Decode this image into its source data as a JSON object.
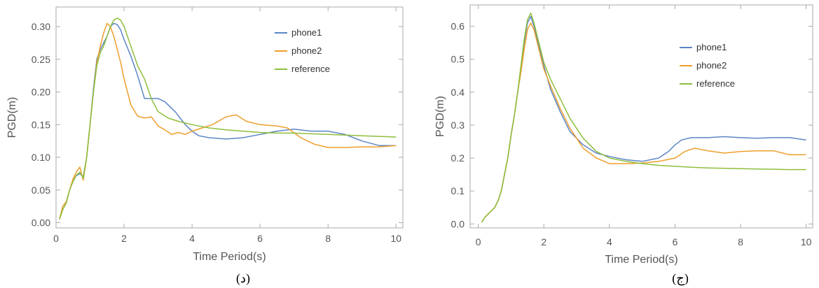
{
  "colors": {
    "phone1": "#5b85c6",
    "phone2": "#ee9e2b",
    "reference": "#8ebe3c",
    "frame": "#aaaaaa"
  },
  "chart_data": [
    {
      "type": "line",
      "caption": "(د)",
      "xlabel": "Time Period(s)",
      "ylabel": "PGD(m)",
      "xlim": [
        0,
        10.2
      ],
      "ylim": [
        -0.008,
        0.33
      ],
      "xticks": [
        0,
        2,
        4,
        6,
        8,
        10
      ],
      "yticks": [
        0.0,
        0.05,
        0.1,
        0.15,
        0.2,
        0.25,
        0.3
      ],
      "ytick_labels": [
        "0.00",
        "0.05",
        "0.10",
        "0.15",
        "0.20",
        "0.25",
        "0.30"
      ],
      "legend": "top-right",
      "series": [
        {
          "name": "phone1",
          "color_key": "phone1",
          "x": [
            0.1,
            0.2,
            0.3,
            0.4,
            0.5,
            0.6,
            0.7,
            0.8,
            0.9,
            1.0,
            1.1,
            1.2,
            1.3,
            1.4,
            1.5,
            1.6,
            1.7,
            1.8,
            1.9,
            2.0,
            2.2,
            2.4,
            2.6,
            2.8,
            3.0,
            3.2,
            3.5,
            3.8,
            4.0,
            4.2,
            4.5,
            5.0,
            5.5,
            6.0,
            6.5,
            7.0,
            7.5,
            8.0,
            8.5,
            9.0,
            9.5,
            10.0
          ],
          "y": [
            0.005,
            0.025,
            0.032,
            0.05,
            0.065,
            0.072,
            0.075,
            0.07,
            0.1,
            0.15,
            0.205,
            0.25,
            0.265,
            0.275,
            0.285,
            0.3,
            0.305,
            0.303,
            0.295,
            0.28,
            0.255,
            0.225,
            0.19,
            0.19,
            0.19,
            0.185,
            0.17,
            0.15,
            0.14,
            0.133,
            0.13,
            0.128,
            0.13,
            0.135,
            0.14,
            0.143,
            0.14,
            0.14,
            0.135,
            0.125,
            0.118,
            0.118
          ]
        },
        {
          "name": "phone2",
          "color_key": "phone2",
          "x": [
            0.1,
            0.2,
            0.3,
            0.4,
            0.5,
            0.6,
            0.7,
            0.8,
            0.9,
            1.0,
            1.1,
            1.2,
            1.3,
            1.4,
            1.5,
            1.6,
            1.7,
            1.8,
            1.9,
            2.0,
            2.2,
            2.4,
            2.6,
            2.8,
            3.0,
            3.2,
            3.4,
            3.6,
            3.8,
            4.0,
            4.3,
            4.6,
            5.0,
            5.3,
            5.6,
            6.0,
            6.5,
            6.8,
            7.2,
            7.6,
            8.0,
            8.5,
            9.0,
            9.5,
            10.0
          ],
          "y": [
            0.005,
            0.025,
            0.032,
            0.05,
            0.067,
            0.078,
            0.085,
            0.065,
            0.1,
            0.15,
            0.2,
            0.245,
            0.27,
            0.29,
            0.305,
            0.3,
            0.285,
            0.265,
            0.245,
            0.22,
            0.18,
            0.163,
            0.16,
            0.162,
            0.148,
            0.142,
            0.135,
            0.138,
            0.135,
            0.14,
            0.145,
            0.15,
            0.162,
            0.165,
            0.155,
            0.15,
            0.148,
            0.145,
            0.13,
            0.12,
            0.115,
            0.115,
            0.116,
            0.116,
            0.118
          ]
        },
        {
          "name": "reference",
          "color_key": "reference",
          "x": [
            0.1,
            0.2,
            0.3,
            0.4,
            0.5,
            0.6,
            0.7,
            0.8,
            0.9,
            1.0,
            1.1,
            1.2,
            1.3,
            1.4,
            1.5,
            1.6,
            1.7,
            1.8,
            1.9,
            2.0,
            2.2,
            2.4,
            2.6,
            2.8,
            3.0,
            3.3,
            3.6,
            4.0,
            4.5,
            5.0,
            5.5,
            6.0,
            6.5,
            7.0,
            7.5,
            8.0,
            8.5,
            9.0,
            9.5,
            10.0
          ],
          "y": [
            0.005,
            0.02,
            0.03,
            0.05,
            0.063,
            0.073,
            0.077,
            0.068,
            0.1,
            0.15,
            0.2,
            0.24,
            0.26,
            0.27,
            0.285,
            0.3,
            0.31,
            0.313,
            0.31,
            0.3,
            0.27,
            0.24,
            0.22,
            0.19,
            0.17,
            0.16,
            0.155,
            0.15,
            0.145,
            0.142,
            0.14,
            0.138,
            0.137,
            0.137,
            0.136,
            0.135,
            0.134,
            0.133,
            0.132,
            0.131
          ]
        }
      ]
    },
    {
      "type": "line",
      "caption": "(ج)",
      "xlabel": "Time Period(s)",
      "ylabel": "PGD(m)",
      "xlim": [
        -0.25,
        10.2
      ],
      "ylim": [
        -0.012,
        0.665
      ],
      "xticks": [
        0,
        2,
        4,
        6,
        8,
        10
      ],
      "yticks": [
        0.0,
        0.1,
        0.2,
        0.3,
        0.4,
        0.5,
        0.6
      ],
      "ytick_labels": [
        "0.0",
        "0.1",
        "0.2",
        "0.3",
        "0.4",
        "0.5",
        "0.6"
      ],
      "legend": "top-right",
      "series": [
        {
          "name": "phone1",
          "color_key": "phone1",
          "x": [
            0.1,
            0.2,
            0.3,
            0.4,
            0.5,
            0.6,
            0.7,
            0.8,
            0.9,
            1.0,
            1.1,
            1.2,
            1.3,
            1.4,
            1.5,
            1.6,
            1.7,
            1.8,
            1.9,
            2.0,
            2.2,
            2.5,
            2.8,
            3.2,
            3.6,
            4.0,
            4.5,
            5.0,
            5.5,
            5.8,
            6.0,
            6.2,
            6.5,
            7.0,
            7.5,
            8.0,
            8.5,
            9.0,
            9.5,
            10.0
          ],
          "y": [
            0.005,
            0.02,
            0.03,
            0.04,
            0.05,
            0.07,
            0.1,
            0.15,
            0.2,
            0.27,
            0.33,
            0.4,
            0.47,
            0.55,
            0.61,
            0.63,
            0.6,
            0.56,
            0.52,
            0.48,
            0.41,
            0.34,
            0.28,
            0.24,
            0.215,
            0.205,
            0.195,
            0.19,
            0.2,
            0.22,
            0.24,
            0.255,
            0.262,
            0.262,
            0.265,
            0.262,
            0.26,
            0.262,
            0.262,
            0.255
          ]
        },
        {
          "name": "phone2",
          "color_key": "phone2",
          "x": [
            0.1,
            0.2,
            0.3,
            0.4,
            0.5,
            0.6,
            0.7,
            0.8,
            0.9,
            1.0,
            1.1,
            1.2,
            1.3,
            1.4,
            1.5,
            1.6,
            1.7,
            1.8,
            1.9,
            2.0,
            2.2,
            2.5,
            2.8,
            3.2,
            3.6,
            4.0,
            4.5,
            5.0,
            5.5,
            6.0,
            6.3,
            6.6,
            7.0,
            7.5,
            8.0,
            8.5,
            9.0,
            9.5,
            10.0
          ],
          "y": [
            0.005,
            0.02,
            0.03,
            0.04,
            0.05,
            0.07,
            0.1,
            0.15,
            0.2,
            0.27,
            0.33,
            0.4,
            0.46,
            0.53,
            0.59,
            0.61,
            0.59,
            0.55,
            0.51,
            0.47,
            0.42,
            0.35,
            0.29,
            0.23,
            0.2,
            0.183,
            0.183,
            0.185,
            0.19,
            0.2,
            0.22,
            0.23,
            0.222,
            0.215,
            0.22,
            0.222,
            0.222,
            0.21,
            0.21
          ]
        },
        {
          "name": "reference",
          "color_key": "reference",
          "x": [
            0.1,
            0.2,
            0.3,
            0.4,
            0.5,
            0.6,
            0.7,
            0.8,
            0.9,
            1.0,
            1.1,
            1.2,
            1.3,
            1.4,
            1.5,
            1.6,
            1.7,
            1.8,
            1.9,
            2.0,
            2.2,
            2.5,
            2.8,
            3.2,
            3.6,
            4.0,
            4.5,
            5.0,
            5.5,
            6.0,
            6.5,
            7.0,
            7.5,
            8.0,
            8.5,
            9.0,
            9.5,
            10.0
          ],
          "y": [
            0.005,
            0.02,
            0.03,
            0.04,
            0.05,
            0.07,
            0.1,
            0.15,
            0.2,
            0.27,
            0.33,
            0.4,
            0.48,
            0.56,
            0.62,
            0.64,
            0.61,
            0.57,
            0.53,
            0.49,
            0.44,
            0.38,
            0.32,
            0.26,
            0.22,
            0.2,
            0.19,
            0.183,
            0.178,
            0.175,
            0.172,
            0.17,
            0.169,
            0.168,
            0.167,
            0.166,
            0.165,
            0.165
          ]
        }
      ]
    }
  ]
}
